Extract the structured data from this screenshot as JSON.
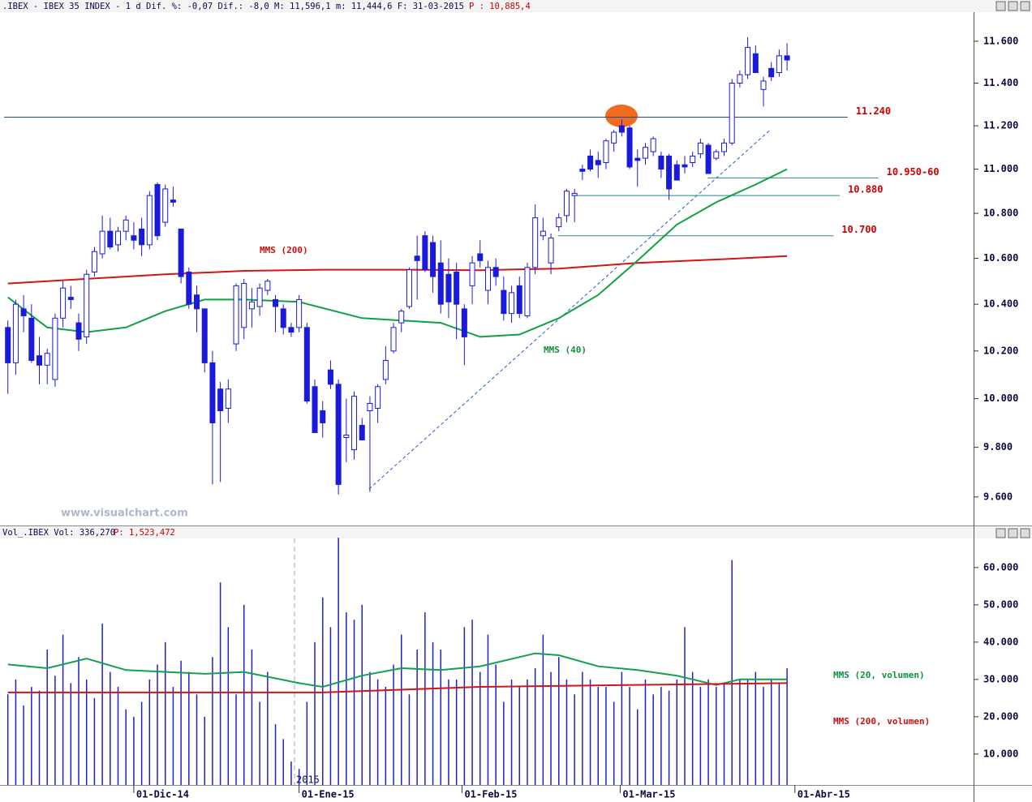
{
  "chart_data": [
    {
      "type": "candlestick",
      "title": ".IBEX - IBEX 35 INDEX -  1 d Dif. %: -0,07 Dif.: -8,0 M: 11,596,1 m: 11,444,6 F: 31-03-2015",
      "subtitle": "P : 10,885,4",
      "watermark": "www.visualchart.com",
      "up_color": "#ffffff",
      "down_color": "#1a1adc",
      "wick_color": "#1a1adc",
      "xlim": [
        -1,
        122.7
      ],
      "ylim": [
        9487,
        11737
      ],
      "log": true,
      "yticks": [
        {
          "value": 9600,
          "label": "9.600"
        },
        {
          "value": 9800,
          "label": "9.800"
        },
        {
          "value": 10000,
          "label": "10.000"
        },
        {
          "value": 10200,
          "label": "10.200"
        },
        {
          "value": 10400,
          "label": "10.400"
        },
        {
          "value": 10600,
          "label": "10.600"
        },
        {
          "value": 10800,
          "label": "10.800"
        },
        {
          "value": 11000,
          "label": "11.000"
        },
        {
          "value": 11200,
          "label": "11.200"
        },
        {
          "value": 11400,
          "label": "11.400"
        },
        {
          "value": 11600,
          "label": "11.600"
        }
      ],
      "candles": [
        [
          10300,
          10330,
          10020,
          10150
        ],
        [
          10150,
          10420,
          10100,
          10400
        ],
        [
          10380,
          10440,
          10280,
          10350
        ],
        [
          10340,
          10400,
          10150,
          10160
        ],
        [
          10180,
          10260,
          10060,
          10140
        ],
        [
          10140,
          10210,
          10060,
          10190
        ],
        [
          10080,
          10360,
          10050,
          10340
        ],
        [
          10340,
          10500,
          10300,
          10470
        ],
        [
          10430,
          10480,
          10380,
          10420
        ],
        [
          10320,
          10360,
          10200,
          10250
        ],
        [
          10260,
          10550,
          10230,
          10530
        ],
        [
          10540,
          10650,
          10520,
          10630
        ],
        [
          10620,
          10790,
          10600,
          10720
        ],
        [
          10720,
          10780,
          10640,
          10650
        ],
        [
          10660,
          10740,
          10630,
          10720
        ],
        [
          10720,
          10790,
          10680,
          10770
        ],
        [
          10700,
          10760,
          10640,
          10680
        ],
        [
          10730,
          10780,
          10610,
          10660
        ],
        [
          10660,
          10900,
          10640,
          10880
        ],
        [
          10930,
          10940,
          10680,
          10700
        ],
        [
          10760,
          10930,
          10740,
          10910
        ],
        [
          10860,
          10920,
          10830,
          10850
        ],
        [
          10730,
          10730,
          10490,
          10520
        ],
        [
          10540,
          10560,
          10380,
          10400
        ],
        [
          10440,
          10480,
          10280,
          10380
        ],
        [
          10380,
          10380,
          10110,
          10150
        ],
        [
          10150,
          10200,
          9650,
          9900
        ],
        [
          10040,
          10070,
          9660,
          9950
        ],
        [
          9960,
          10080,
          9900,
          10040
        ],
        [
          10230,
          10490,
          10200,
          10480
        ],
        [
          10300,
          10510,
          10250,
          10490
        ],
        [
          10380,
          10470,
          10300,
          10410
        ],
        [
          10390,
          10490,
          10350,
          10470
        ],
        [
          10460,
          10510,
          10440,
          10500
        ],
        [
          10420,
          10440,
          10280,
          10390
        ],
        [
          10380,
          10400,
          10270,
          10300
        ],
        [
          10300,
          10320,
          10260,
          10280
        ],
        [
          10300,
          10440,
          10280,
          10420
        ],
        [
          10300,
          10320,
          9980,
          9990
        ],
        [
          10050,
          10080,
          9860,
          9860
        ],
        [
          9950,
          9990,
          9840,
          9900
        ],
        [
          10120,
          10160,
          10040,
          10060
        ],
        [
          10060,
          10080,
          9610,
          9650
        ],
        [
          9840,
          10000,
          9740,
          9850
        ],
        [
          9790,
          10030,
          9750,
          10010
        ],
        [
          9890,
          9920,
          9830,
          9830
        ],
        [
          9950,
          10010,
          9620,
          9980
        ],
        [
          9960,
          10060,
          9900,
          10050
        ],
        [
          10080,
          10220,
          10060,
          10160
        ],
        [
          10200,
          10320,
          10190,
          10300
        ],
        [
          10320,
          10380,
          10280,
          10370
        ],
        [
          10390,
          10560,
          10380,
          10550
        ],
        [
          10610,
          10700,
          10420,
          10590
        ],
        [
          10700,
          10720,
          10540,
          10550
        ],
        [
          10670,
          10700,
          10450,
          10520
        ],
        [
          10580,
          10680,
          10360,
          10400
        ],
        [
          10530,
          10600,
          10340,
          10410
        ],
        [
          10540,
          10580,
          10250,
          10400
        ],
        [
          10380,
          10400,
          10140,
          10260
        ],
        [
          10480,
          10610,
          10400,
          10580
        ],
        [
          10620,
          10680,
          10560,
          10590
        ],
        [
          10460,
          10590,
          10400,
          10560
        ],
        [
          10560,
          10600,
          10480,
          10520
        ],
        [
          10460,
          10520,
          10330,
          10360
        ],
        [
          10360,
          10480,
          10320,
          10450
        ],
        [
          10480,
          10520,
          10340,
          10360
        ],
        [
          10350,
          10580,
          10340,
          10560
        ],
        [
          10560,
          10840,
          10530,
          10780
        ],
        [
          10700,
          10780,
          10680,
          10720
        ],
        [
          10580,
          10710,
          10530,
          10690
        ],
        [
          10740,
          10800,
          10720,
          10780
        ],
        [
          10790,
          10910,
          10760,
          10900
        ],
        [
          10880,
          10910,
          10760,
          10890
        ],
        [
          11000,
          11020,
          10950,
          10990
        ],
        [
          11060,
          11090,
          10990,
          11000
        ],
        [
          11040,
          11080,
          10960,
          11020
        ],
        [
          11030,
          11140,
          11000,
          11130
        ],
        [
          11120,
          11180,
          11080,
          11170
        ],
        [
          11200,
          11230,
          11150,
          11170
        ],
        [
          11190,
          11200,
          11000,
          11010
        ],
        [
          11050,
          11090,
          10920,
          11040
        ],
        [
          11050,
          11120,
          11020,
          11100
        ],
        [
          11080,
          11150,
          11060,
          11140
        ],
        [
          11060,
          11080,
          10960,
          11000
        ],
        [
          11060,
          11070,
          10860,
          10910
        ],
        [
          11020,
          11040,
          10950,
          10950
        ],
        [
          11020,
          11060,
          10980,
          11010
        ],
        [
          11030,
          11080,
          11010,
          11060
        ],
        [
          11070,
          11140,
          11050,
          11120
        ],
        [
          11110,
          11120,
          10980,
          10980
        ],
        [
          11050,
          11090,
          11040,
          11080
        ],
        [
          11080,
          11140,
          11060,
          11120
        ],
        [
          11120,
          11420,
          11110,
          11400
        ],
        [
          11400,
          11460,
          11380,
          11440
        ],
        [
          11440,
          11620,
          11420,
          11570
        ],
        [
          11540,
          11580,
          11450,
          11450
        ],
        [
          11370,
          11430,
          11290,
          11410
        ],
        [
          11470,
          11500,
          11410,
          11430
        ],
        [
          11450,
          11560,
          11430,
          11530
        ],
        [
          11530,
          11590,
          11460,
          11510
        ]
      ],
      "series": [
        {
          "name": "MMS (200)",
          "color": "#d41515",
          "x": [
            0,
            10,
            20,
            30,
            40,
            50,
            60,
            70,
            80,
            90,
            99
          ],
          "values": [
            10490,
            10510,
            10530,
            10545,
            10550,
            10550,
            10548,
            10555,
            10580,
            10595,
            10610
          ]
        },
        {
          "name": "MMS (40)",
          "color": "#12a040",
          "x": [
            0,
            5,
            10,
            15,
            20,
            25,
            30,
            37,
            45,
            50,
            55,
            60,
            65,
            70,
            75,
            80,
            85,
            90,
            95,
            99
          ],
          "values": [
            10430,
            10300,
            10280,
            10300,
            10370,
            10420,
            10420,
            10410,
            10340,
            10330,
            10320,
            10260,
            10270,
            10340,
            10440,
            10590,
            10750,
            10850,
            10930,
            11000
          ]
        }
      ],
      "levels": [
        {
          "value": 11240,
          "label": "11.240",
          "color": "#2b4c7e",
          "x": [
            -0.48,
            106.7
          ]
        },
        {
          "value": 10960,
          "label": "10.950-60",
          "color": "#2a8a8a",
          "x": [
            88.9,
            110.6
          ]
        },
        {
          "value": 10880,
          "label": "10.880",
          "color": "#2a8a8a",
          "x": [
            71.8,
            105.7
          ]
        },
        {
          "value": 10700,
          "label": "10.700",
          "color": "#2a8a8a",
          "x": [
            69.9,
            104.9
          ]
        }
      ],
      "level_label_color": "#cc0000",
      "trendline": {
        "color": "#2a5ad0",
        "x": [
          45.9,
          96.9
        ],
        "values": [
          9632,
          11182
        ]
      }
    },
    {
      "type": "bar",
      "title": "Vol_.IBEX Vol: 336,270",
      "subtitle": "P: 1,523,472",
      "year_label": "2015",
      "color": "#2020c8",
      "xlim": [
        -1,
        122.7
      ],
      "ylim": [
        1700,
        67800
      ],
      "yticks": [
        {
          "value": 10000,
          "label": "10.000"
        },
        {
          "value": 20000,
          "label": "20.000"
        },
        {
          "value": 30000,
          "label": "30.000"
        },
        {
          "value": 40000,
          "label": "40.000"
        },
        {
          "value": 50000,
          "label": "50.000"
        },
        {
          "value": 60000,
          "label": "60.000"
        }
      ],
      "xticks": [
        {
          "value": 16,
          "label": "01-Dic-14"
        },
        {
          "value": 37,
          "label": "01-Ene-15"
        },
        {
          "value": 57.7,
          "label": "01-Feb-15"
        },
        {
          "value": 77.8,
          "label": "01-Mar-15"
        },
        {
          "value": 100,
          "label": "01-Abr-15"
        }
      ],
      "values": [
        26000,
        30000,
        23000,
        28000,
        27000,
        38000,
        31000,
        42000,
        29000,
        36000,
        30000,
        25000,
        45000,
        32000,
        28000,
        22000,
        20000,
        24000,
        30000,
        34000,
        40000,
        28000,
        35000,
        32000,
        26000,
        20000,
        36000,
        56000,
        44000,
        26000,
        50000,
        38000,
        24000,
        32000,
        18000,
        14000,
        8000,
        6000,
        24000,
        40000,
        52000,
        44000,
        68000,
        48000,
        46000,
        50000,
        32000,
        30000,
        28000,
        34000,
        42000,
        26000,
        38000,
        48000,
        40000,
        38000,
        30000,
        30000,
        44000,
        46000,
        32000,
        42000,
        34000,
        24000,
        30000,
        28000,
        30000,
        33000,
        42000,
        32000,
        36000,
        30000,
        26000,
        32000,
        30000,
        28000,
        28000,
        24000,
        32000,
        28000,
        22000,
        30000,
        26000,
        28000,
        27000,
        30000,
        44000,
        32000,
        28000,
        30000,
        28000,
        29000,
        62000,
        30000,
        30000,
        32000,
        28000,
        30000,
        29000,
        33000
      ],
      "series": [
        {
          "name": "MMS (20, volumen)",
          "color": "#14a050",
          "x": [
            0,
            5,
            10,
            15,
            25,
            30,
            37,
            40,
            45,
            50,
            55,
            60,
            67,
            70,
            75,
            80,
            85,
            90,
            93,
            99
          ],
          "values": [
            34000,
            33000,
            35600,
            32500,
            31500,
            32000,
            29000,
            28000,
            31000,
            33000,
            32500,
            33500,
            37000,
            36500,
            33500,
            32500,
            31000,
            28500,
            30000,
            30000
          ]
        },
        {
          "name": "MMS (200, volumen)",
          "color": "#d41515",
          "x": [
            0,
            40,
            60,
            99
          ],
          "values": [
            26500,
            26500,
            28000,
            29000
          ]
        }
      ]
    }
  ]
}
